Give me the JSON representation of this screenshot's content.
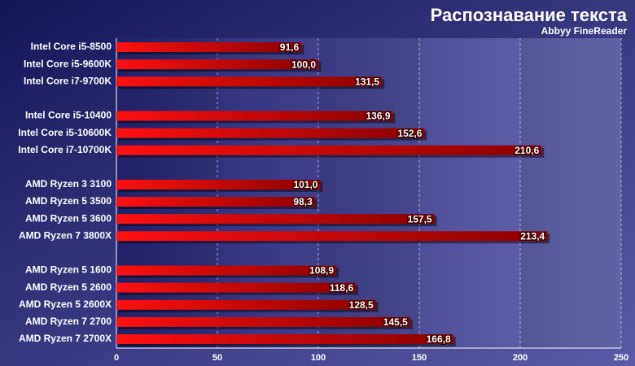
{
  "chart_data": {
    "type": "bar",
    "orientation": "horizontal",
    "title": "Распознавание текста",
    "subtitle": "Abbyy FineReader",
    "categories": [
      "Intel Core i5-8500",
      "Intel Core i5-9600K",
      "Intel Core i7-9700K",
      null,
      "Intel Core i5-10400",
      "Intel Core i5-10600K",
      "Intel Core i7-10700K",
      null,
      "AMD Ryzen 3 3100",
      "AMD Ryzen 5 3500",
      "AMD Ryzen 5 3600",
      "AMD Ryzen 7 3800X",
      null,
      "AMD Ryzen 5 1600",
      "AMD Ryzen 5 2600",
      "AMD Ryzen 5 2600X",
      "AMD Ryzen 7 2700",
      "AMD Ryzen 7 2700X"
    ],
    "values": [
      91.6,
      100.0,
      131.5,
      null,
      136.9,
      152.6,
      210.6,
      null,
      101.0,
      98.3,
      157.5,
      213.4,
      null,
      108.9,
      118.6,
      128.5,
      145.5,
      166.8
    ],
    "value_labels": [
      "91,6",
      "100,0",
      "131,5",
      null,
      "136,9",
      "152,6",
      "210,6",
      null,
      "101,0",
      "98,3",
      "157,5",
      "213,4",
      null,
      "108,9",
      "118,6",
      "128,5",
      "145,5",
      "166,8"
    ],
    "color": "#e80000",
    "xlim": [
      0,
      250
    ],
    "xticks": [
      0,
      50,
      100,
      150,
      200,
      250
    ],
    "grid": true
  }
}
